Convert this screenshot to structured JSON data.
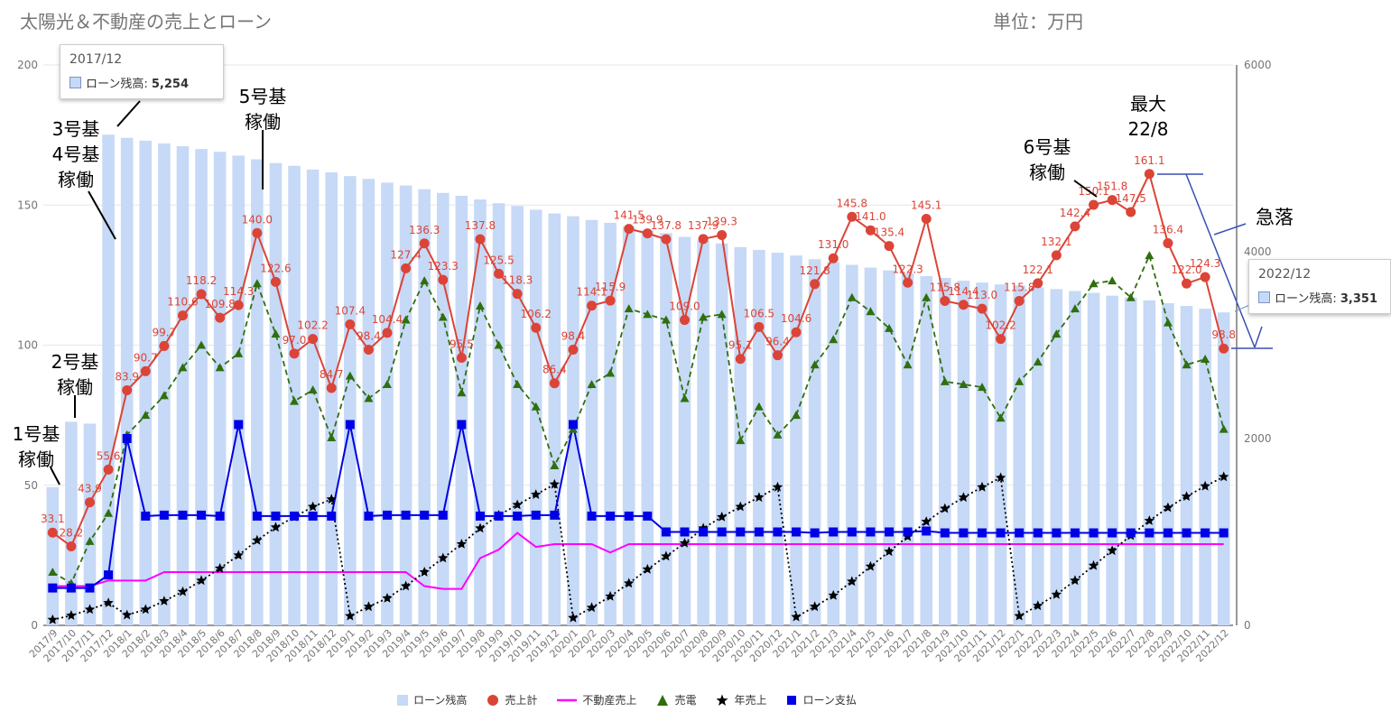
{
  "title": "太陽光＆不動産の売上とローン",
  "unit_label": "単位：万円",
  "tooltips": [
    {
      "period": "2017/12",
      "label": "ローン残高:",
      "value": "5,254"
    },
    {
      "period": "2022/12",
      "label": "ローン残高:",
      "value": "3,351"
    }
  ],
  "annotations": [
    {
      "id": "u1",
      "text": "1号基\n稼働"
    },
    {
      "id": "u2",
      "text": "2号基\n稼働"
    },
    {
      "id": "u34",
      "text": "3号基\n4号基\n稼働"
    },
    {
      "id": "u5",
      "text": "5号基\n稼働"
    },
    {
      "id": "u6",
      "text": "6号基\n稼働"
    },
    {
      "id": "max",
      "text": "最大\n22/8"
    },
    {
      "id": "drop",
      "text": "急落"
    }
  ],
  "colors": {
    "loan_balance": "#c6d9f6",
    "sales_total": "#db4437",
    "real_estate": "#ff00ff",
    "solar": "#2f6f0e",
    "annual": "#000000",
    "loan_payment": "#0000e6",
    "grid": "#e6e6e6",
    "axis_text": "#757575",
    "arrow_blue": "#3a4fb3"
  },
  "chart_data": {
    "type": "combo",
    "categories": [
      "2017/9",
      "2017/10",
      "2017/11",
      "2017/12",
      "2018/1",
      "2018/2",
      "2018/3",
      "2018/4",
      "2018/5",
      "2018/6",
      "2018/7",
      "2018/8",
      "2018/9",
      "2018/10",
      "2018/11",
      "2018/12",
      "2019/1",
      "2019/2",
      "2019/3",
      "2019/4",
      "2019/5",
      "2019/6",
      "2019/7",
      "2019/8",
      "2019/9",
      "2019/10",
      "2019/11",
      "2019/12",
      "2020/1",
      "2020/2",
      "2020/3",
      "2020/4",
      "2020/5",
      "2020/6",
      "2020/7",
      "2020/8",
      "2020/9",
      "2020/10",
      "2020/11",
      "2020/12",
      "2021/1",
      "2021/2",
      "2021/3",
      "2021/4",
      "2021/5",
      "2021/6",
      "2021/7",
      "2021/8",
      "2021/9",
      "2021/10",
      "2021/11",
      "2021/12",
      "2022/1",
      "2022/2",
      "2022/3",
      "2022/4",
      "2022/5",
      "2022/6",
      "2022/7",
      "2022/8",
      "2022/9",
      "2022/10",
      "2022/11",
      "2022/12"
    ],
    "left_axis": {
      "min": 0,
      "max": 200,
      "ticks": [
        0,
        50,
        100,
        150,
        200
      ]
    },
    "right_axis": {
      "min": 0,
      "max": 6000,
      "ticks": [
        0,
        2000,
        4000,
        6000
      ]
    },
    "series": [
      {
        "name": "ローン残高",
        "type": "bar",
        "axis": "right",
        "values": [
          1480,
          2180,
          2160,
          5254,
          5220,
          5190,
          5160,
          5130,
          5100,
          5070,
          5030,
          4990,
          4950,
          4920,
          4880,
          4850,
          4810,
          4780,
          4740,
          4710,
          4670,
          4630,
          4600,
          4560,
          4520,
          4490,
          4450,
          4410,
          4380,
          4340,
          4310,
          4270,
          4230,
          4200,
          4160,
          4120,
          4090,
          4050,
          4020,
          3990,
          3960,
          3920,
          3890,
          3860,
          3830,
          3800,
          3770,
          3740,
          3720,
          3690,
          3670,
          3650,
          3640,
          3620,
          3600,
          3580,
          3560,
          3530,
          3510,
          3480,
          3450,
          3420,
          3390,
          3351
        ]
      },
      {
        "name": "売上計",
        "type": "line",
        "axis": "left",
        "values": [
          33.1,
          28.2,
          43.9,
          55.6,
          83.9,
          90.7,
          99.7,
          110.6,
          118.2,
          109.8,
          114.3,
          140.0,
          122.6,
          97.0,
          102.2,
          84.7,
          107.4,
          98.4,
          104.4,
          127.4,
          136.3,
          123.3,
          95.5,
          137.8,
          125.5,
          118.3,
          106.2,
          86.4,
          98.4,
          114.1,
          115.9,
          141.5,
          139.9,
          137.8,
          109.0,
          137.9,
          139.3,
          95.1,
          106.5,
          96.4,
          104.6,
          121.8,
          131.0,
          145.8,
          141.0,
          135.4,
          122.3,
          145.1,
          115.8,
          114.4,
          113.0,
          102.2,
          115.8,
          122.1,
          132.1,
          142.4,
          150.1,
          151.8,
          147.5,
          161.1,
          136.4,
          122.0,
          124.3,
          98.8
        ],
        "labels": [
          "33.1",
          "28.2",
          "43.9",
          "55.6",
          "83.9",
          "90.7",
          "99.7",
          "110.6",
          "118.2",
          "109.8",
          "114.3",
          "140.0",
          "122.6",
          "97.0",
          "102.2",
          "84.7",
          "107.4",
          "98.4",
          "104.4",
          "127.4",
          "136.3",
          "123.3",
          "95.5",
          "137.8",
          "125.5",
          "118.3",
          "106.2",
          "86.4",
          "98.4",
          "114.1",
          "115.9",
          "141.5",
          "139.9",
          "137.8",
          "109.0",
          "137.9",
          "139.3",
          "95.1",
          "106.5",
          "96.4",
          "104.6",
          "121.8",
          "131.0",
          "145.8",
          "141.0",
          "135.4",
          "122.3",
          "145.1",
          "115.8",
          "114.4",
          "113.0",
          "102.2",
          "115.8",
          "122.1",
          "132.1",
          "142.4",
          "150.1",
          "151.8",
          "147.5",
          "161.1",
          "136.4",
          "122.0",
          "124.3",
          "98.8"
        ]
      },
      {
        "name": "不動産売上",
        "type": "line",
        "axis": "left",
        "values": [
          14,
          14,
          14,
          16,
          16,
          16,
          19,
          19,
          19,
          19,
          19,
          19,
          19,
          19,
          19,
          19,
          19,
          19,
          19,
          19,
          14,
          13,
          13,
          24,
          27,
          33,
          28,
          29,
          29,
          29,
          26,
          29,
          29,
          29,
          29,
          29,
          29,
          29,
          29,
          29,
          29,
          29,
          29,
          29,
          29,
          29,
          29,
          29,
          29,
          29,
          29,
          29,
          29,
          29,
          29,
          29,
          29,
          29,
          29,
          29,
          29,
          29,
          29,
          29
        ]
      },
      {
        "name": "売電",
        "type": "line",
        "axis": "left",
        "values": [
          19,
          15,
          30,
          40,
          68,
          75,
          82,
          92,
          100,
          92,
          97,
          122,
          104,
          80,
          84,
          67,
          89,
          81,
          86,
          109,
          123,
          110,
          83,
          114,
          100,
          86,
          78,
          57,
          70,
          86,
          90,
          113,
          111,
          109,
          81,
          110,
          111,
          66,
          78,
          68,
          75,
          93,
          102,
          117,
          112,
          106,
          93,
          117,
          87,
          86,
          85,
          74,
          87,
          94,
          104,
          113,
          122,
          123,
          117,
          132,
          108,
          93,
          95,
          70
        ]
      },
      {
        "name": "年売上",
        "type": "line",
        "axis": "right",
        "values": [
          60,
          105,
          170,
          240,
          110,
          170,
          260,
          360,
          480,
          610,
          750,
          910,
          1050,
          1160,
          1270,
          1350,
          100,
          200,
          290,
          420,
          570,
          720,
          870,
          1040,
          1180,
          1290,
          1400,
          1510,
          80,
          190,
          310,
          450,
          600,
          740,
          880,
          1040,
          1160,
          1270,
          1370,
          1480,
          90,
          200,
          320,
          470,
          630,
          790,
          950,
          1110,
          1250,
          1370,
          1480,
          1580,
          100,
          210,
          330,
          480,
          640,
          800,
          960,
          1120,
          1260,
          1380,
          1490,
          1590
        ]
      },
      {
        "name": "ローン支払",
        "type": "line",
        "axis": "right",
        "values": [
          400,
          400,
          400,
          540,
          2000,
          1170,
          1180,
          1180,
          1180,
          1170,
          2150,
          1170,
          1170,
          1170,
          1170,
          1170,
          2150,
          1170,
          1180,
          1180,
          1180,
          1180,
          2150,
          1170,
          1170,
          1170,
          1180,
          1180,
          2150,
          1170,
          1170,
          1170,
          1170,
          1000,
          1000,
          1000,
          1000,
          1000,
          1000,
          1000,
          1000,
          990,
          1000,
          1000,
          1000,
          1000,
          1000,
          1010,
          990,
          990,
          990,
          990,
          990,
          990,
          990,
          990,
          990,
          990,
          990,
          990,
          990,
          990,
          990,
          990
        ]
      }
    ],
    "legend": [
      "ローン残高",
      "売上計",
      "不動産売上",
      "売電",
      "年売上",
      "ローン支払"
    ],
    "legend_position": "bottom"
  }
}
